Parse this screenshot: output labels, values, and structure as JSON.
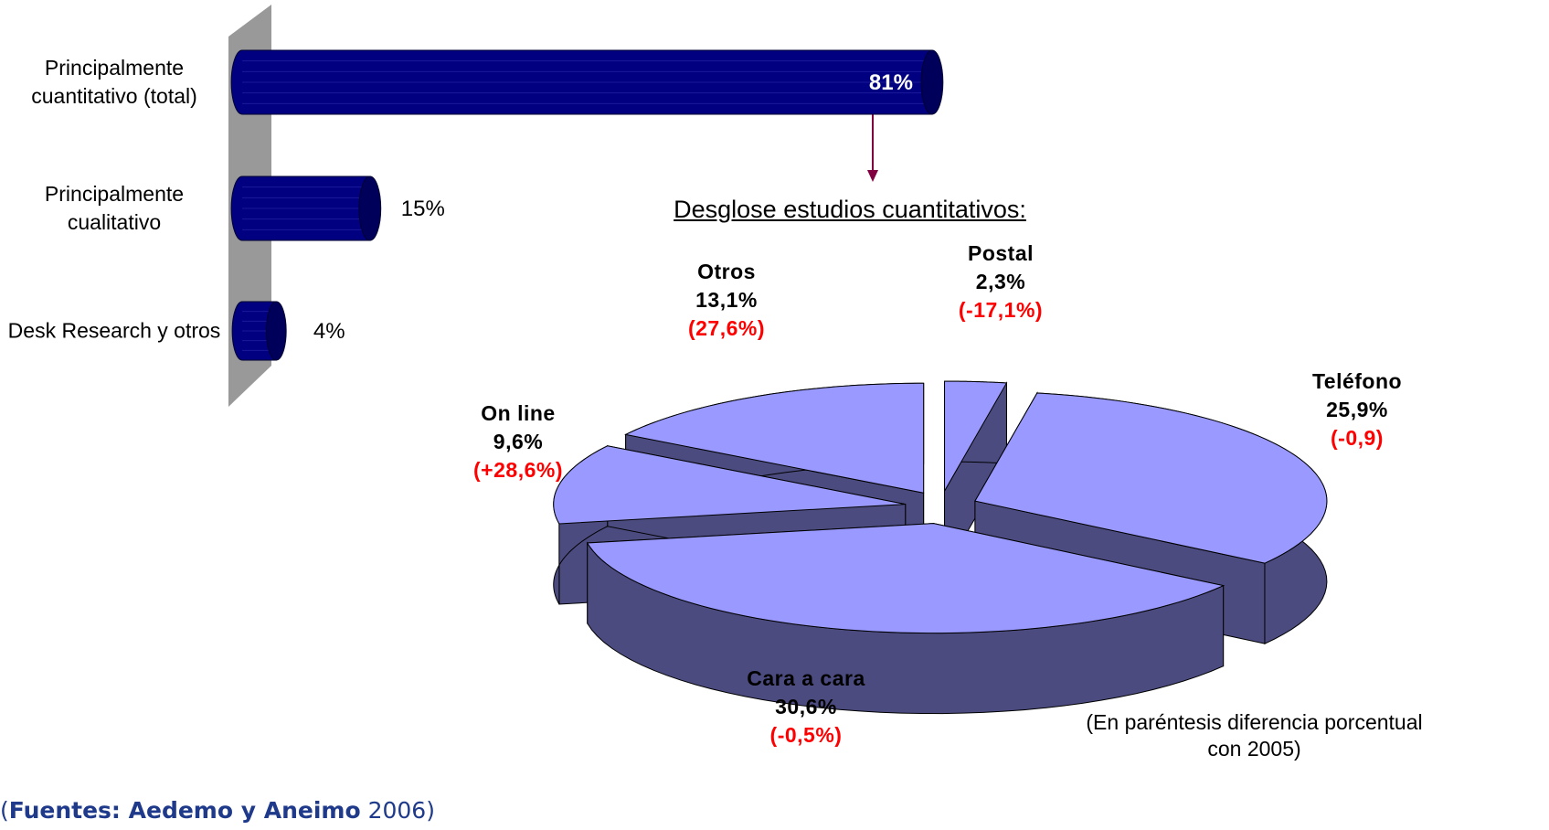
{
  "chart_data": [
    {
      "type": "bar",
      "categories": [
        "Principalmente cuantitativo (total)",
        "Principalmente cualitativo",
        "Desk Research y otros"
      ],
      "values": [
        81,
        15,
        4
      ],
      "value_labels": [
        "81%",
        "15%",
        "4%"
      ],
      "color": "#000080"
    },
    {
      "type": "pie",
      "title": "Desglose estudios cuantitativos:",
      "labels": [
        "Postal",
        "Teléfono",
        "Cara a cara",
        "On line",
        "Otros"
      ],
      "values": [
        2.3,
        25.9,
        30.6,
        9.6,
        13.1
      ],
      "value_labels": [
        "2,3%",
        "25,9%",
        "30,6%",
        "9,6%",
        "13,1%"
      ],
      "changes": [
        {
          "value": -17.1,
          "label": "(-17,1%)"
        },
        {
          "value": -0.9,
          "label": "(-0,9)"
        },
        {
          "value": -0.5,
          "label": "(-0,5%)"
        },
        {
          "value": 28.6,
          "label": "(+28,6%)"
        },
        {
          "value": 27.6,
          "label": "(27,6%)"
        }
      ],
      "color": "#9999ff",
      "side_color": "#4b4b80",
      "change_color": "#ff0000",
      "note": "(En paréntesis diferencia porcentual con 2005)"
    }
  ],
  "source_prefix": "(",
  "source_bold": "Fuentes: Aedemo y Aneimo",
  "source_suffix": " 2006)"
}
